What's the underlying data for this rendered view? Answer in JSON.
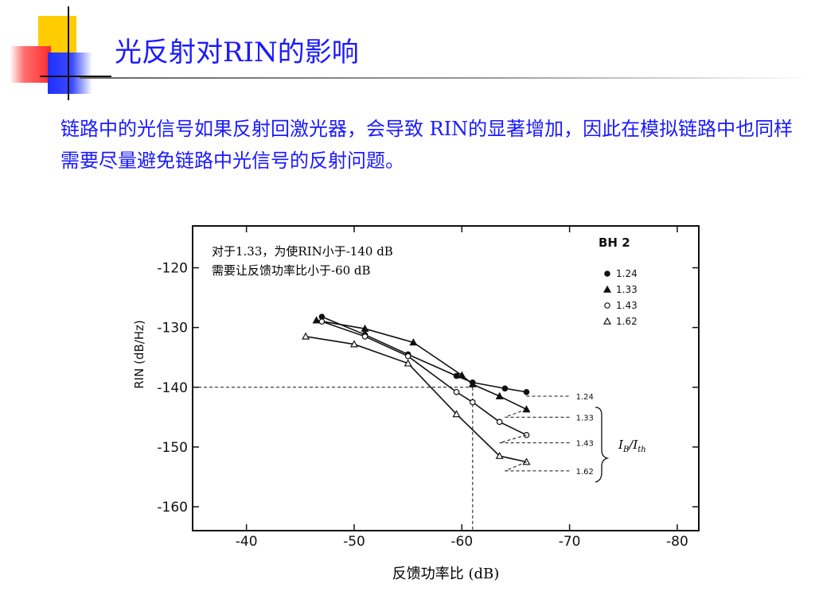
{
  "title": "光反射对RIN的影响",
  "body_text": "链路中的光信号如果反射回激光器，会导致 RIN的显著增加，因此在模拟链路中也同样需要尽量避免链路中光信号的反射问题。",
  "annotation": {
    "line1": "对于1.33，为使RIN小于-140 dB",
    "line2": "需要让反馈功率比小于-60 dB"
  },
  "ib_label": {
    "base_i": "I",
    "sub_b": "B",
    "sep": "/I",
    "sub_th": "th"
  },
  "x_axis_title": "反馈功率比 (dB)",
  "colors": {
    "accent_text": "#1a1aff",
    "header_yellow": "#ffcc00",
    "header_red": "#ff2a2a",
    "header_blue": "#1f2fff"
  },
  "chart_data": {
    "type": "line",
    "series_title": "BH 2",
    "ylabel": "RIN (dB/Hz)",
    "xlabel": "反馈功率比 (dB)",
    "xlim": [
      -35,
      -82
    ],
    "ylim": [
      -164,
      -113
    ],
    "x_ticks": [
      -40,
      -50,
      -60,
      -70,
      -80
    ],
    "y_ticks": [
      -120,
      -130,
      -140,
      -150,
      -160
    ],
    "x_tick_labels": [
      "-40",
      "-50",
      "-60",
      "-70",
      "-80"
    ],
    "y_tick_labels": [
      "-120",
      "-130",
      "-140",
      "-150",
      "-160"
    ],
    "legend_position": "top-right",
    "reference_point": {
      "x": -61,
      "y": -140
    },
    "series": [
      {
        "name": "1.24",
        "marker": "filled-circle",
        "x": [
          -47,
          -51,
          -55,
          -59.5,
          -61,
          -64,
          -66
        ],
        "y": [
          -128.2,
          -131.2,
          -134.5,
          -138.1,
          -139.2,
          -140.2,
          -140.8
        ],
        "asymptote": {
          "from_x": -66,
          "to_x": -70,
          "y": -141.5
        }
      },
      {
        "name": "1.33",
        "marker": "filled-triangle",
        "x": [
          -46.5,
          -51,
          -55.5,
          -60,
          -61,
          -63.5,
          -66
        ],
        "y": [
          -128.8,
          -130.2,
          -132.5,
          -138.0,
          -139.5,
          -141.5,
          -143.7
        ],
        "asymptote": {
          "from_x": -64,
          "to_x": -70,
          "y": -145.0
        }
      },
      {
        "name": "1.43",
        "marker": "open-circle",
        "x": [
          -47,
          -51,
          -55,
          -59.5,
          -61,
          -63.5,
          -66
        ],
        "y": [
          -129.0,
          -131.5,
          -134.8,
          -140.8,
          -142.5,
          -145.8,
          -148.0
        ],
        "asymptote": {
          "from_x": -63.5,
          "to_x": -70,
          "y": -149.3
        }
      },
      {
        "name": "1.62",
        "marker": "open-triangle",
        "x": [
          -45.5,
          -50,
          -55,
          -59.5,
          -63.5,
          -66
        ],
        "y": [
          -131.5,
          -132.8,
          -136.0,
          -144.5,
          -151.5,
          -152.5
        ],
        "asymptote": {
          "from_x": -64,
          "to_x": -70,
          "y": -154.0
        }
      }
    ]
  }
}
